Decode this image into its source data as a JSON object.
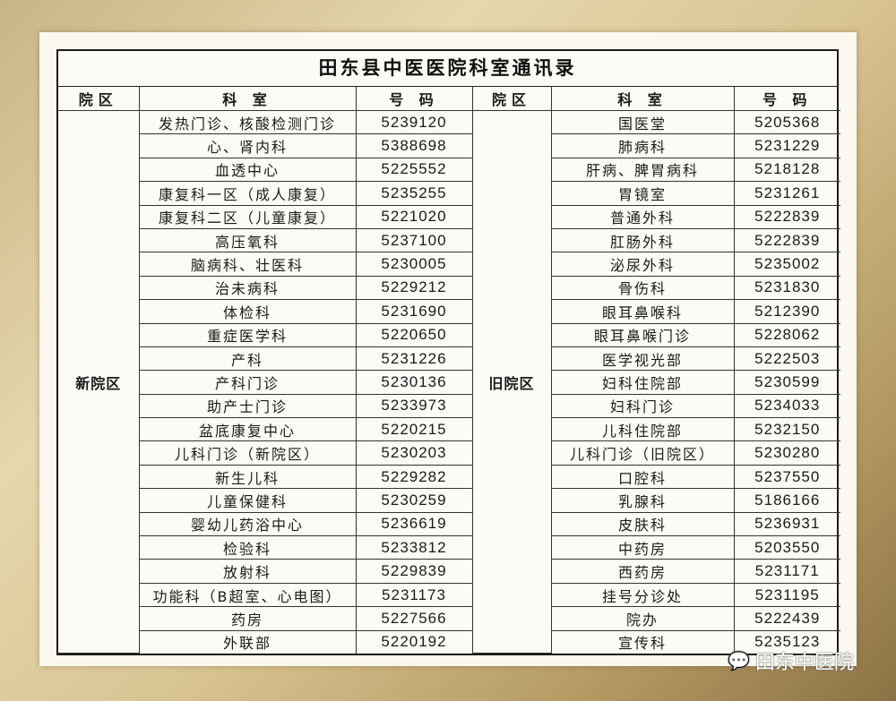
{
  "title": "田东县中医医院科室通讯录",
  "headers": {
    "area": "院区",
    "dept": "科 室",
    "phone": "号 码"
  },
  "watermark": "田东中医院",
  "left": {
    "area": "新院区",
    "rows": [
      {
        "dept": "发热门诊、核酸检测门诊",
        "phone": "5239120"
      },
      {
        "dept": "心、肾内科",
        "phone": "5388698"
      },
      {
        "dept": "血透中心",
        "phone": "5225552"
      },
      {
        "dept": "康复科一区（成人康复）",
        "phone": "5235255"
      },
      {
        "dept": "康复科二区（儿童康复）",
        "phone": "5221020"
      },
      {
        "dept": "高压氧科",
        "phone": "5237100"
      },
      {
        "dept": "脑病科、壮医科",
        "phone": "5230005"
      },
      {
        "dept": "治未病科",
        "phone": "5229212"
      },
      {
        "dept": "体检科",
        "phone": "5231690"
      },
      {
        "dept": "重症医学科",
        "phone": "5220650"
      },
      {
        "dept": "产科",
        "phone": "5231226"
      },
      {
        "dept": "产科门诊",
        "phone": "5230136"
      },
      {
        "dept": "助产士门诊",
        "phone": "5233973"
      },
      {
        "dept": "盆底康复中心",
        "phone": "5220215"
      },
      {
        "dept": "儿科门诊（新院区）",
        "phone": "5230203"
      },
      {
        "dept": "新生儿科",
        "phone": "5229282"
      },
      {
        "dept": "儿童保健科",
        "phone": "5230259"
      },
      {
        "dept": "婴幼儿药浴中心",
        "phone": "5236619"
      },
      {
        "dept": "检验科",
        "phone": "5233812"
      },
      {
        "dept": "放射科",
        "phone": "5229839"
      },
      {
        "dept": "功能科（B超室、心电图）",
        "phone": "5231173"
      },
      {
        "dept": "药房",
        "phone": "5227566"
      },
      {
        "dept": "外联部",
        "phone": "5220192"
      }
    ]
  },
  "right": {
    "area": "旧院区",
    "rows": [
      {
        "dept": "国医堂",
        "phone": "5205368"
      },
      {
        "dept": "肺病科",
        "phone": "5231229"
      },
      {
        "dept": "肝病、脾胃病科",
        "phone": "5218128"
      },
      {
        "dept": "胃镜室",
        "phone": "5231261"
      },
      {
        "dept": "普通外科",
        "phone": "5222839"
      },
      {
        "dept": "肛肠外科",
        "phone": "5222839"
      },
      {
        "dept": "泌尿外科",
        "phone": "5235002"
      },
      {
        "dept": "骨伤科",
        "phone": "5231830"
      },
      {
        "dept": "眼耳鼻喉科",
        "phone": "5212390"
      },
      {
        "dept": "眼耳鼻喉门诊",
        "phone": "5228062"
      },
      {
        "dept": "医学视光部",
        "phone": "5222503"
      },
      {
        "dept": "妇科住院部",
        "phone": "5230599"
      },
      {
        "dept": "妇科门诊",
        "phone": "5234033"
      },
      {
        "dept": "儿科住院部",
        "phone": "5232150"
      },
      {
        "dept": "儿科门诊（旧院区）",
        "phone": "5230280"
      },
      {
        "dept": "口腔科",
        "phone": "5237550"
      },
      {
        "dept": "乳腺科",
        "phone": "5186166"
      },
      {
        "dept": "皮肤科",
        "phone": "5236931"
      },
      {
        "dept": "中药房",
        "phone": "5203550"
      },
      {
        "dept": "西药房",
        "phone": "5231171"
      },
      {
        "dept": "挂号分诊处",
        "phone": "5231195"
      },
      {
        "dept": "院办",
        "phone": "5222439"
      },
      {
        "dept": "宣传科",
        "phone": "5235123"
      }
    ]
  }
}
